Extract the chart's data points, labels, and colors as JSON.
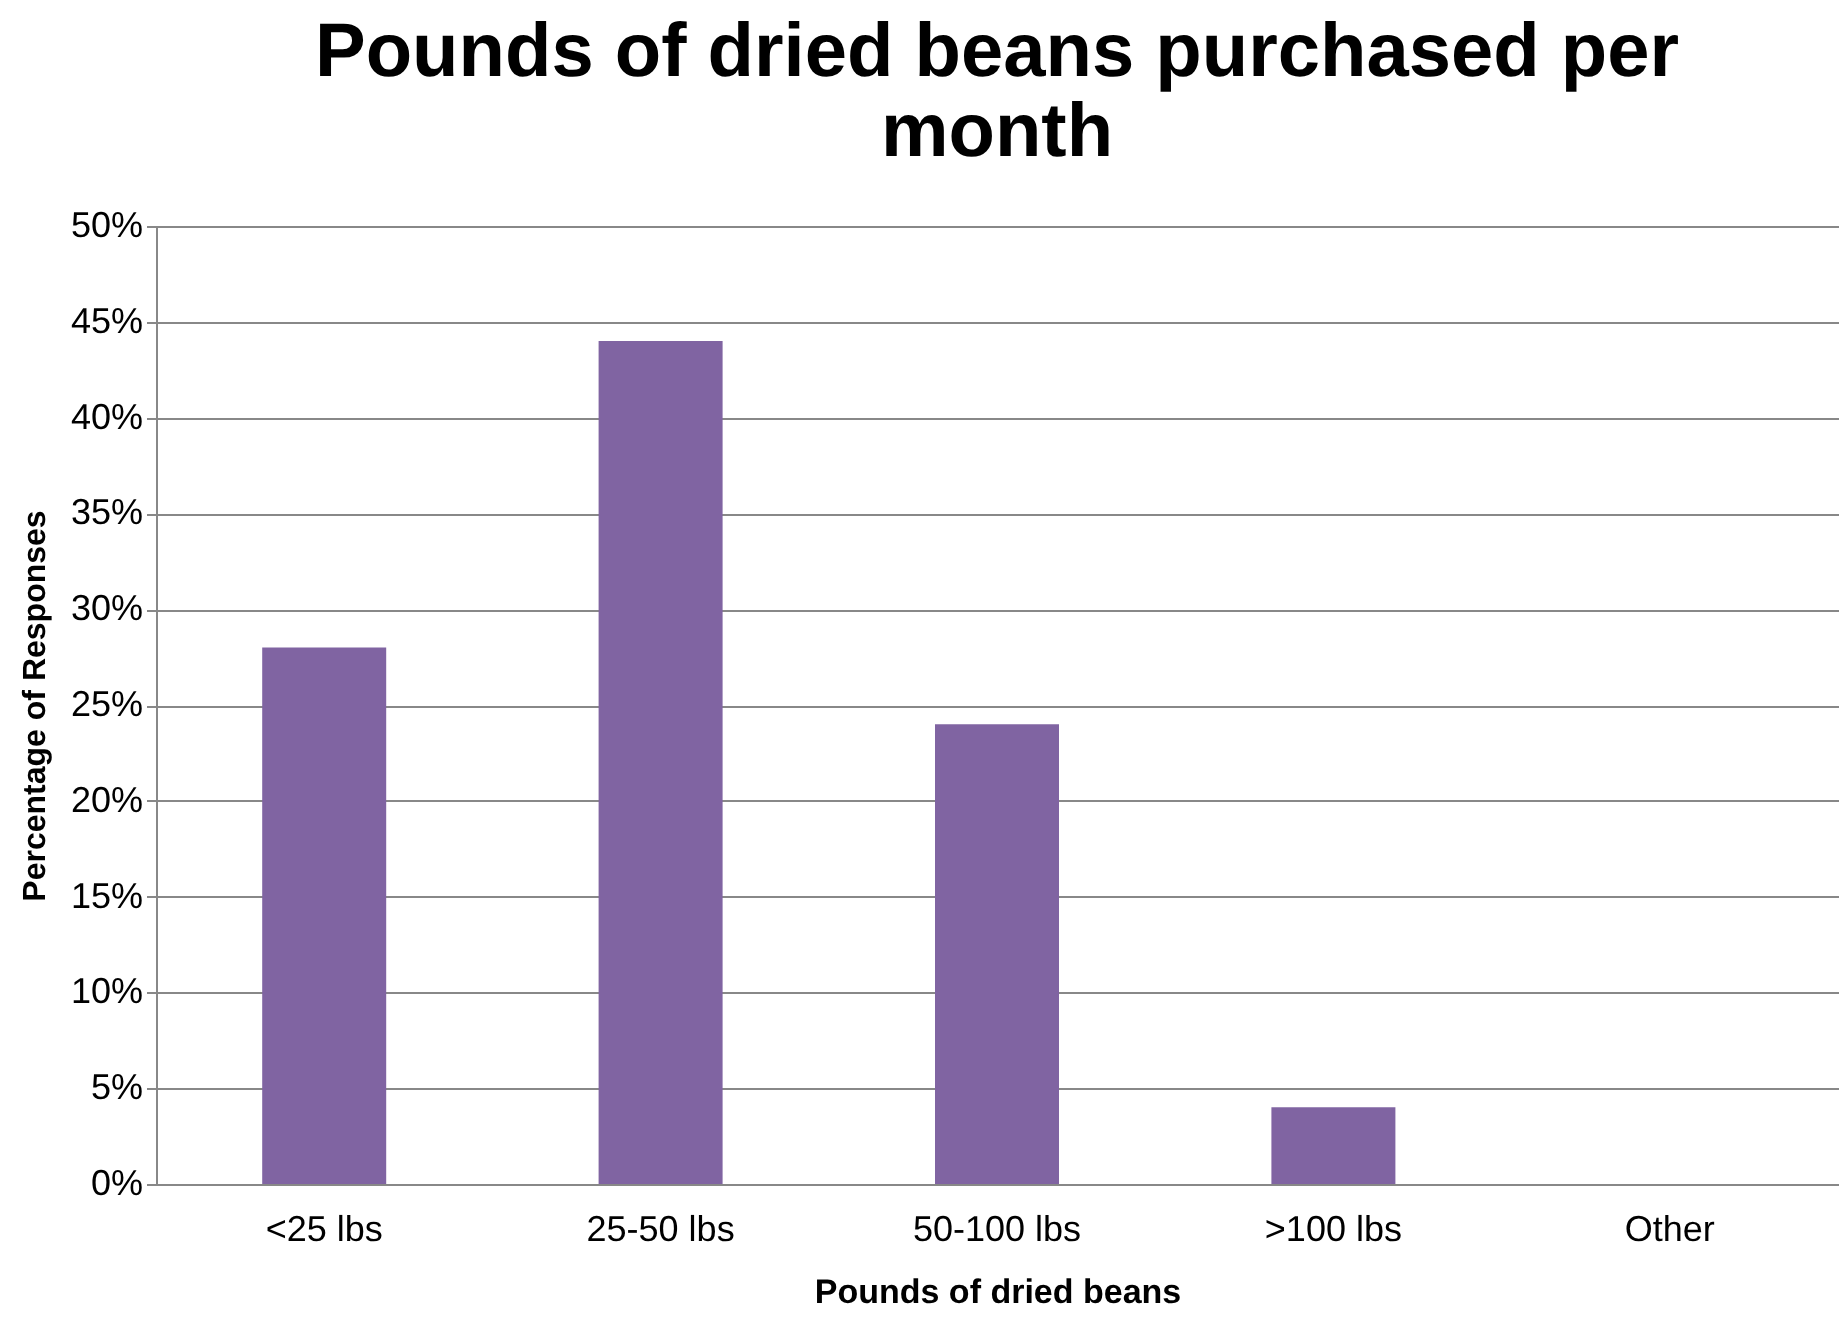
{
  "chart_data": {
    "type": "bar",
    "title": [
      "Pounds of dried beans purchased per",
      "month"
    ],
    "xlabel": "Pounds of dried beans",
    "ylabel": "Percentage of Responses",
    "categories": [
      "<25 lbs",
      "25-50 lbs",
      "50-100 lbs",
      ">100 lbs",
      "Other"
    ],
    "values": [
      28,
      44,
      24,
      4,
      0
    ],
    "color": "#8064a2",
    "ylim": [
      0,
      50
    ],
    "yticks": [
      {
        "value": 0,
        "label": "0%"
      },
      {
        "value": 5,
        "label": "5%"
      },
      {
        "value": 10,
        "label": "10%"
      },
      {
        "value": 15,
        "label": "15%"
      },
      {
        "value": 20,
        "label": "20%"
      },
      {
        "value": 25,
        "label": "25%"
      },
      {
        "value": 30,
        "label": "30%"
      },
      {
        "value": 35,
        "label": "35%"
      },
      {
        "value": 40,
        "label": "40%"
      },
      {
        "value": 45,
        "label": "45%"
      },
      {
        "value": 50,
        "label": "50%"
      }
    ],
    "grid": "y"
  }
}
